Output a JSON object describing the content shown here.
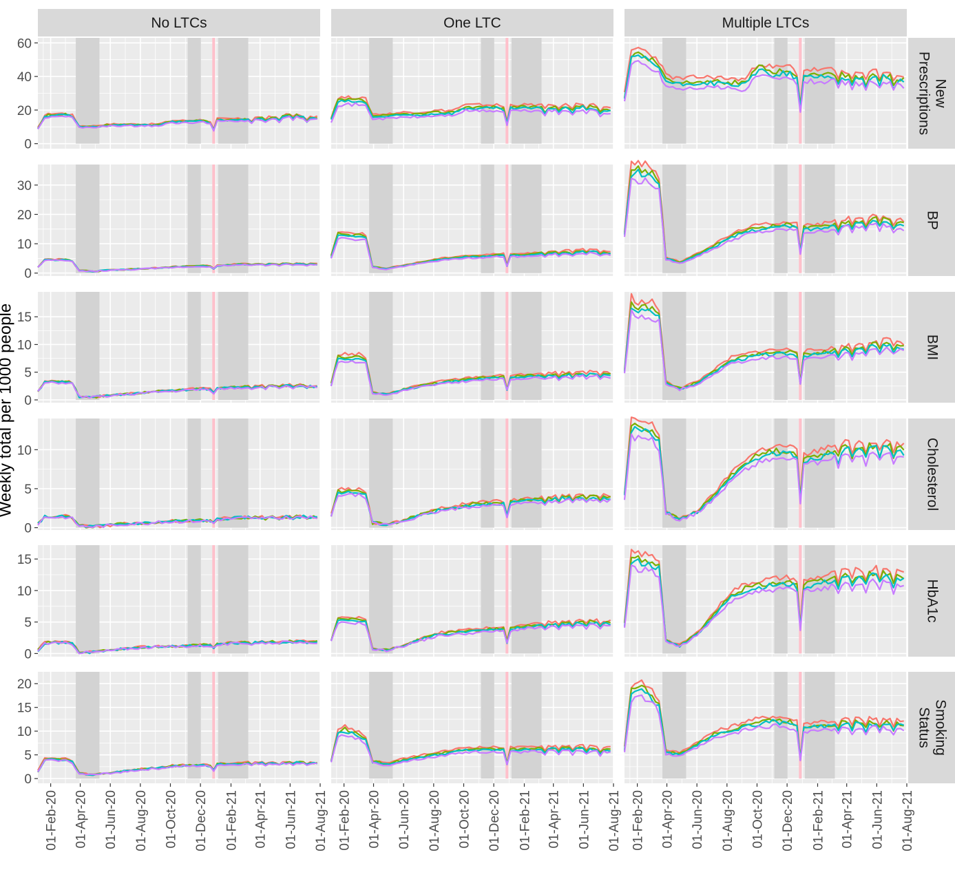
{
  "chart_data": {
    "type": "line",
    "title": "",
    "ylabel": "Weekly total per 1000 people",
    "xlabel": "",
    "x_tick_labels": [
      "01-Feb-20",
      "01-Apr-20",
      "01-Jun-20",
      "01-Aug-20",
      "01-Oct-20",
      "01-Dec-20",
      "01-Feb-21",
      "01-Apr-21",
      "01-Jun-21",
      "01-Aug-21"
    ],
    "x_tick_dates": [
      "2020-02-01",
      "2020-04-01",
      "2020-06-01",
      "2020-08-01",
      "2020-10-01",
      "2020-12-01",
      "2021-02-01",
      "2021-04-01",
      "2021-06-01",
      "2021-08-01"
    ],
    "xlim": [
      "2020-01-06",
      "2021-08-01"
    ],
    "column_facets": [
      "No LTCs",
      "One LTC",
      "Multiple LTCs"
    ],
    "row_facets": [
      {
        "label": "New Prescriptions",
        "lines": [
          "New",
          "Prescriptions"
        ],
        "ylim": [
          -3,
          63
        ],
        "yticks": [
          0,
          20,
          40,
          60
        ]
      },
      {
        "label": "BP",
        "lines": [
          "BP"
        ],
        "ylim": [
          -1,
          37
        ],
        "yticks": [
          0,
          10,
          20,
          30
        ]
      },
      {
        "label": "BMI",
        "lines": [
          "BMI"
        ],
        "ylim": [
          -0.5,
          19.5
        ],
        "yticks": [
          0,
          5,
          10,
          15
        ]
      },
      {
        "label": "Cholesterol",
        "lines": [
          "Cholesterol"
        ],
        "ylim": [
          -0.3,
          14
        ],
        "yticks": [
          0,
          5,
          10
        ]
      },
      {
        "label": "HbA1c",
        "lines": [
          "HbA1c"
        ],
        "ylim": [
          -0.5,
          17.2
        ],
        "yticks": [
          0,
          5,
          10,
          15
        ]
      },
      {
        "label": "Smoking Status",
        "lines": [
          "Smoking",
          "Status"
        ],
        "ylim": [
          -1,
          22.5
        ],
        "yticks": [
          0,
          5,
          10,
          15,
          20
        ]
      }
    ],
    "shaded_periods": [
      {
        "start": "2020-03-23",
        "end": "2020-05-10",
        "color": "#d3d3d3"
      },
      {
        "start": "2020-11-05",
        "end": "2020-12-02",
        "color": "#d3d3d3"
      },
      {
        "start": "2021-01-06",
        "end": "2021-03-08",
        "color": "#d3d3d3"
      }
    ],
    "highlight_period": {
      "start": "2020-12-25",
      "end": "2020-12-28",
      "color": "#ffc0cb"
    },
    "series": [
      {
        "color": "#f8766d",
        "level_factor": 1.1,
        "noise_seed": 1
      },
      {
        "color": "#7cae00",
        "level_factor": 1.04,
        "noise_seed": 2
      },
      {
        "color": "#00bfc4",
        "level_factor": 1.0,
        "noise_seed": 3
      },
      {
        "color": "#c77cff",
        "level_factor": 0.93,
        "noise_seed": 4
      }
    ],
    "baseline_profile": {
      "weeks": [
        "2020-01-06",
        "2020-01-20",
        "2020-02-03",
        "2020-03-02",
        "2020-03-16",
        "2020-03-30",
        "2020-04-27",
        "2020-06-01",
        "2020-07-06",
        "2020-08-10",
        "2020-09-07",
        "2020-10-05",
        "2020-11-02",
        "2020-12-07",
        "2020-12-21",
        "2020-12-28",
        "2021-01-04",
        "2021-02-01",
        "2021-03-01",
        "2021-04-05",
        "2021-05-03",
        "2021-06-07",
        "2021-07-05",
        "2021-08-01"
      ],
      "panels": [
        [
          [
            9,
            16,
            17,
            17,
            16,
            10,
            10,
            11,
            11,
            11,
            11,
            13,
            13,
            13.5,
            12,
            8,
            14,
            14,
            14,
            15,
            15,
            17,
            15,
            15
          ],
          [
            14,
            25,
            25,
            25,
            24,
            16,
            16,
            17,
            17,
            18,
            18,
            21,
            21,
            21,
            20,
            12,
            21,
            21,
            21,
            21,
            21,
            22,
            20,
            19
          ],
          [
            27,
            50,
            52,
            48,
            45,
            37,
            35,
            36,
            36,
            35,
            35,
            44,
            41,
            42,
            38,
            21,
            40,
            40,
            40,
            39,
            38,
            40,
            38,
            36
          ]
        ],
        [
          [
            2,
            4.5,
            4.5,
            4.5,
            4,
            0.8,
            0.6,
            1,
            1.2,
            1.5,
            1.7,
            2,
            2.2,
            2.4,
            2.3,
            1.5,
            2.5,
            2.8,
            3,
            3,
            3,
            3.2,
            3,
            3
          ],
          [
            5.5,
            13,
            12.5,
            12.5,
            12,
            2,
            1.4,
            2.5,
            3.5,
            4.5,
            5,
            5.5,
            5.5,
            6,
            6,
            2.5,
            6,
            6,
            6.5,
            7,
            7,
            7.5,
            7,
            6.5
          ],
          [
            13,
            34,
            34,
            33,
            30,
            5,
            3.5,
            6,
            9,
            12,
            14,
            15,
            15.5,
            16,
            15.5,
            7,
            15,
            15,
            16,
            17,
            17,
            18,
            17,
            16
          ]
        ],
        [
          [
            1.5,
            3.2,
            3.2,
            3.2,
            3,
            0.6,
            0.5,
            0.8,
            1,
            1.3,
            1.5,
            1.6,
            1.8,
            2,
            1.9,
            1.3,
            2,
            2.2,
            2.3,
            2.4,
            2.5,
            2.6,
            2.5,
            2.3
          ],
          [
            2.7,
            7.5,
            7.5,
            7.5,
            7,
            1.3,
            0.9,
            1.8,
            2.5,
            3,
            3.3,
            3.6,
            3.8,
            4,
            4,
            1.8,
            4,
            4.2,
            4.3,
            4.5,
            4.5,
            4.7,
            4.6,
            4.3
          ],
          [
            5,
            17,
            16,
            16,
            15,
            3,
            2,
            3,
            5,
            7,
            7.5,
            8,
            8.2,
            8.3,
            8,
            3,
            8,
            8.2,
            8.5,
            9,
            9.2,
            10,
            9.8,
            9.2
          ]
        ],
        [
          [
            0.5,
            1.4,
            1.4,
            1.4,
            1.2,
            0.2,
            0.15,
            0.3,
            0.5,
            0.6,
            0.7,
            0.8,
            0.85,
            0.9,
            0.9,
            0.6,
            1.1,
            1.2,
            1.3,
            1.3,
            1.3,
            1.4,
            1.4,
            1.3
          ],
          [
            1.5,
            4.5,
            4.5,
            4.5,
            4.2,
            0.6,
            0.4,
            0.9,
            1.6,
            2.2,
            2.5,
            2.8,
            3,
            3.1,
            3.1,
            1.5,
            3.2,
            3.4,
            3.5,
            3.7,
            3.8,
            3.9,
            3.8,
            3.7
          ],
          [
            4,
            12.5,
            12.5,
            12,
            11,
            2,
            1,
            2,
            4,
            6.5,
            8,
            9,
            9.5,
            9.5,
            9,
            3.5,
            8.5,
            9,
            9.5,
            10,
            10,
            10.2,
            10,
            9.5
          ]
        ],
        [
          [
            0.5,
            1.7,
            1.7,
            1.7,
            1.6,
            0.2,
            0.2,
            0.5,
            0.8,
            1,
            1.1,
            1.1,
            1.2,
            1.3,
            1.3,
            0.9,
            1.4,
            1.6,
            1.7,
            1.8,
            1.8,
            1.9,
            1.9,
            1.8
          ],
          [
            2,
            5.2,
            5.2,
            5.2,
            5,
            0.7,
            0.5,
            1.3,
            2.2,
            3,
            3.2,
            3.4,
            3.6,
            3.8,
            3.8,
            1.8,
            3.9,
            4.2,
            4.4,
            4.6,
            4.7,
            4.9,
            4.8,
            4.6
          ],
          [
            4.5,
            14.5,
            14.5,
            14,
            13.5,
            2,
            1.2,
            3,
            6,
            9,
            10,
            10.5,
            10.8,
            11,
            10.5,
            4,
            10.5,
            11,
            11.5,
            12,
            12,
            12.5,
            12,
            11.5
          ]
        ],
        [
          [
            1.5,
            4,
            4,
            4,
            3.5,
            1,
            0.8,
            1.2,
            1.6,
            2,
            2.2,
            2.6,
            2.7,
            2.8,
            2.6,
            1.8,
            3,
            3,
            3.2,
            3.3,
            3.3,
            3.4,
            3.3,
            3.2
          ],
          [
            3.5,
            9.5,
            10,
            9,
            8,
            3.5,
            3,
            3.8,
            4.5,
            5,
            5.5,
            6,
            6,
            6,
            6,
            3,
            6,
            6,
            6.2,
            6.3,
            6.3,
            6.3,
            6,
            6
          ],
          [
            6,
            18,
            19,
            17,
            15,
            5.5,
            5,
            7,
            9,
            10,
            11,
            11.5,
            12,
            11.5,
            11,
            4,
            10.5,
            11,
            11,
            11.5,
            11.5,
            11.5,
            11.2,
            11
          ]
        ]
      ]
    }
  }
}
